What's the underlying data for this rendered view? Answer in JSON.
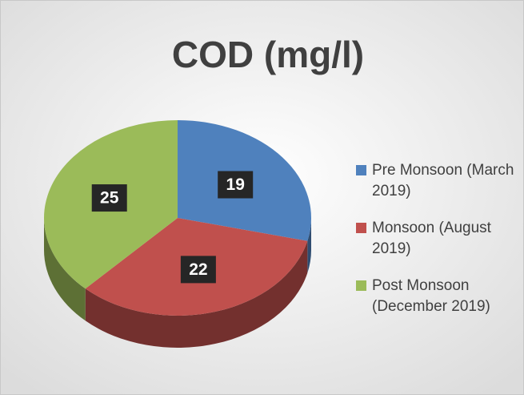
{
  "chart_data": {
    "type": "pie",
    "title": "COD (mg/l)",
    "series": [
      {
        "name": "Pre Monsoon (March 2019)",
        "color": "#4f81bd",
        "values": [
          19
        ]
      },
      {
        "name": "Monsoon (August 2019)",
        "color": "#c0504d",
        "values": [
          22
        ]
      },
      {
        "name": "Post Monsoon (December 2019)",
        "color": "#9bbb59",
        "values": [
          25
        ]
      }
    ]
  }
}
